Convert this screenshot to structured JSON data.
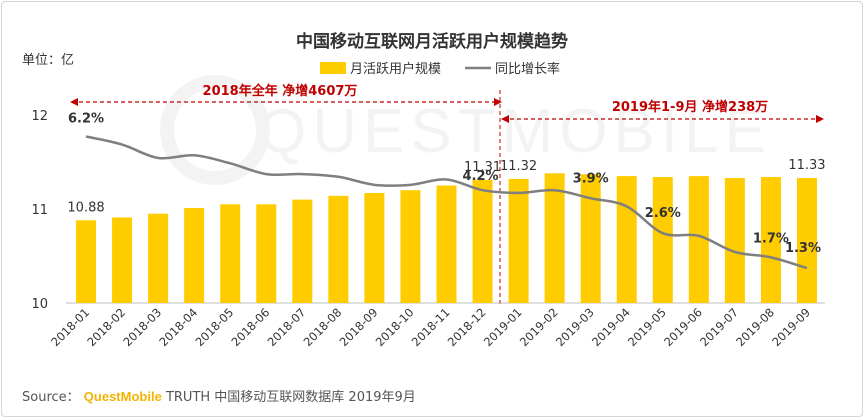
{
  "chart_data": {
    "type": "bar+line",
    "title": "中国移动互联网月活跃用户规模趋势",
    "unit_label": "单位：亿",
    "legend": {
      "bar": "月活跃用户规模",
      "line": "同比增长率",
      "placement": "top-center"
    },
    "categories": [
      "2018-01",
      "2018-02",
      "2018-03",
      "2018-04",
      "2018-05",
      "2018-06",
      "2018-07",
      "2018-08",
      "2018-09",
      "2018-10",
      "2018-11",
      "2018-12",
      "2019-01",
      "2019-02",
      "2019-03",
      "2019-04",
      "2019-05",
      "2019-06",
      "2019-07",
      "2019-08",
      "2019-09"
    ],
    "series": [
      {
        "name": "月活跃用户规模",
        "type": "bar",
        "values": [
          10.88,
          10.91,
          10.95,
          11.01,
          11.05,
          11.05,
          11.1,
          11.14,
          11.17,
          11.2,
          11.25,
          11.31,
          11.32,
          11.38,
          11.37,
          11.35,
          11.34,
          11.35,
          11.33,
          11.34,
          11.33
        ]
      },
      {
        "name": "同比增长率",
        "type": "line",
        "values": [
          6.2,
          5.9,
          5.4,
          5.5,
          5.2,
          4.8,
          4.8,
          4.7,
          4.4,
          4.4,
          4.6,
          4.2,
          4.1,
          4.2,
          3.9,
          3.6,
          2.6,
          2.5,
          1.9,
          1.7,
          1.3
        ]
      }
    ],
    "bar_labels": [
      {
        "index": 0,
        "text": "10.88"
      },
      {
        "index": 11,
        "text": "11.31"
      },
      {
        "index": 12,
        "text": "11.32"
      },
      {
        "index": 20,
        "text": "11.33"
      }
    ],
    "line_labels": [
      {
        "index": 0,
        "text": "6.2%"
      },
      {
        "index": 11,
        "text": "4.2%"
      },
      {
        "index": 14,
        "text": "3.9%"
      },
      {
        "index": 16,
        "text": "2.6%"
      },
      {
        "index": 19,
        "text": "1.7%"
      },
      {
        "index": 20,
        "text": "1.3%"
      }
    ],
    "y_axis": {
      "min": 10,
      "max": 12,
      "ticks": [
        "10",
        "11",
        "12"
      ]
    },
    "y2_axis": {
      "min": 0,
      "max": 7,
      "hidden": true
    },
    "annotations": [
      {
        "id": "2018",
        "text": "2018年全年 净增4607万",
        "from": "2018-01",
        "to": "2018-12"
      },
      {
        "id": "2019",
        "text": "2019年1-9月 净增238万",
        "from": "2019-01",
        "to": "2019-09"
      }
    ],
    "watermark": "QUESTMOBILE"
  },
  "source": {
    "prefix": "Source：",
    "brand": "QuestMobile",
    "text": "TRUTH 中国移动互联网数据库 2019年9月"
  },
  "colors": {
    "bar": "#FFCC00",
    "line": "#7f7f7f",
    "annotation": "#c00000",
    "title": "#333333",
    "axis": "#bfbfbf"
  }
}
